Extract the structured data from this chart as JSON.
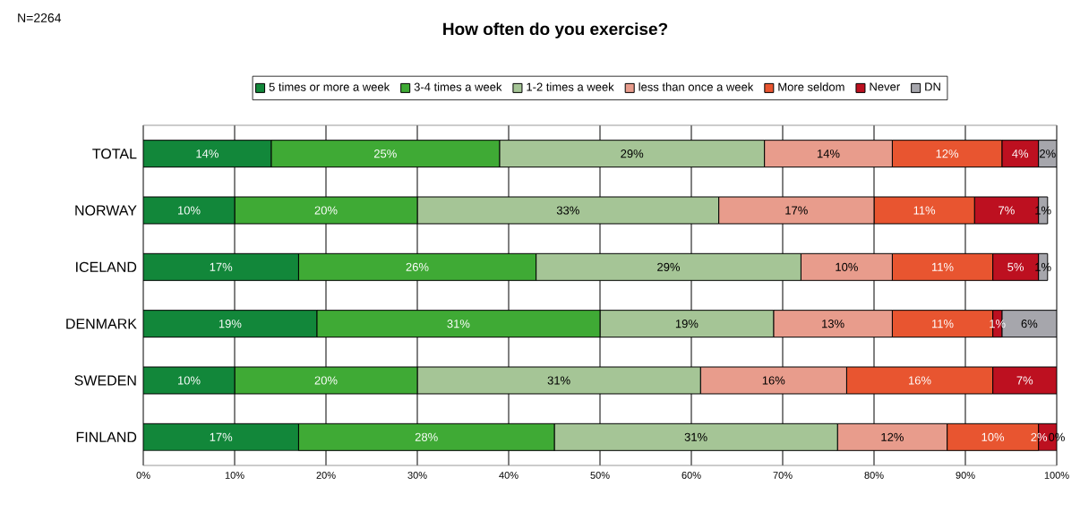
{
  "chart_data": {
    "type": "bar",
    "orientation": "horizontal",
    "stacked": true,
    "title": "How often do you exercise?",
    "annotations": [
      "N=2264"
    ],
    "categories": [
      "TOTAL",
      "NORWAY",
      "ICELAND",
      "DENMARK",
      "SWEDEN",
      "FINLAND"
    ],
    "series": [
      {
        "name": "5 times or more a week",
        "color": "#12873a",
        "values": [
          14,
          10,
          17,
          19,
          10,
          17
        ],
        "value_labels": [
          "14%",
          "10%",
          "17%",
          "19%",
          "10%",
          "17%"
        ]
      },
      {
        "name": "3-4 times a week",
        "color": "#3faa35",
        "values": [
          25,
          20,
          26,
          31,
          20,
          28
        ],
        "value_labels": [
          "25%",
          "20%",
          "26%",
          "31%",
          "20%",
          "28%"
        ]
      },
      {
        "name": "1-2 times a week",
        "color": "#a5c596",
        "values": [
          29,
          33,
          29,
          19,
          31,
          31
        ],
        "value_labels": [
          "29%",
          "33%",
          "29%",
          "19%",
          "31%",
          "31%"
        ]
      },
      {
        "name": "less than once a week",
        "color": "#e89c8c",
        "values": [
          14,
          17,
          10,
          13,
          16,
          12
        ],
        "value_labels": [
          "14%",
          "17%",
          "10%",
          "13%",
          "16%",
          "12%"
        ]
      },
      {
        "name": "More seldom",
        "color": "#e85530",
        "values": [
          12,
          11,
          11,
          11,
          16,
          10
        ],
        "value_labels": [
          "12%",
          "11%",
          "11%",
          "11%",
          "16%",
          "10%"
        ]
      },
      {
        "name": "Never",
        "color": "#bd1020",
        "values": [
          4,
          7,
          5,
          1,
          7,
          2
        ],
        "value_labels": [
          "4%",
          "7%",
          "5%",
          "1%",
          "7%",
          "2%"
        ]
      },
      {
        "name": "DN",
        "color": "#a6a6ac",
        "values": [
          2,
          1,
          1,
          6,
          0,
          0
        ],
        "value_labels": [
          "2%",
          "1%",
          "1%",
          "6%",
          null,
          "0%"
        ]
      }
    ],
    "xlim": [
      0,
      100
    ],
    "xticks": [
      {
        "value": 0,
        "label": "0%"
      },
      {
        "value": 10,
        "label": "10%"
      },
      {
        "value": 20,
        "label": "20%"
      },
      {
        "value": 30,
        "label": "30%"
      },
      {
        "value": 40,
        "label": "40%"
      },
      {
        "value": 50,
        "label": "50%"
      },
      {
        "value": 60,
        "label": "60%"
      },
      {
        "value": 70,
        "label": "70%"
      },
      {
        "value": 80,
        "label": "80%"
      },
      {
        "value": 90,
        "label": "90%"
      },
      {
        "value": 100,
        "label": "100%"
      }
    ],
    "grid": "x",
    "legend": "top"
  }
}
